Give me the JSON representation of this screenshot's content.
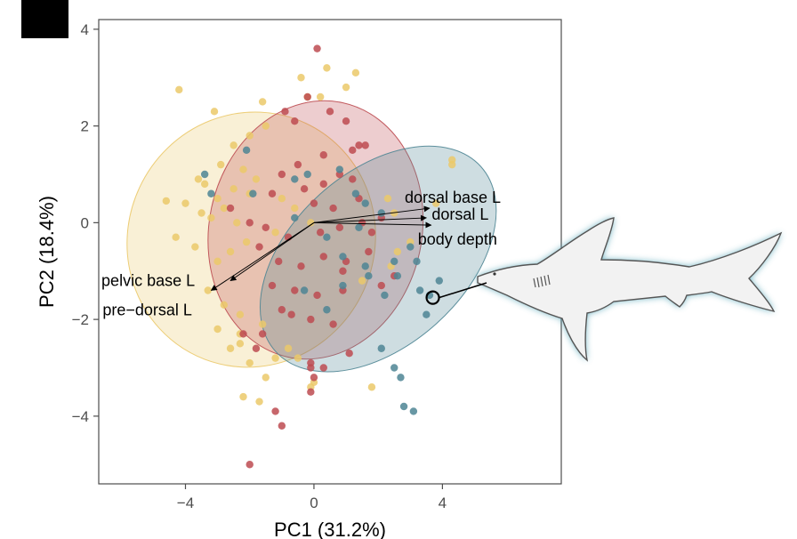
{
  "corner_box": {
    "color": "#000000"
  },
  "chart_data": {
    "type": "scatter",
    "title": "",
    "xlabel": "PC1 (31.2%)",
    "ylabel": "PC2 (18.4%)",
    "xlim": [
      -6.7,
      7.7
    ],
    "ylim": [
      -5.4,
      4.2
    ],
    "x_ticks": [
      -4,
      0,
      4
    ],
    "x_tick_labels": [
      "−4",
      "0",
      "4"
    ],
    "y_ticks": [
      4,
      2,
      0,
      -2,
      -4
    ],
    "y_tick_labels": [
      "4",
      "2",
      "0",
      "−2",
      "−4"
    ],
    "grid": false,
    "legend": "none",
    "series": [
      {
        "color": "#EBC96A",
        "points": [
          [
            -4.2,
            2.75
          ],
          [
            -3.1,
            2.3
          ],
          [
            -1.6,
            2.5
          ],
          [
            -0.4,
            3.0
          ],
          [
            0.4,
            3.2
          ],
          [
            1.3,
            3.1
          ],
          [
            -0.2,
            2.6
          ],
          [
            0.2,
            2.6
          ],
          [
            -1.5,
            2.0
          ],
          [
            -2.5,
            1.6
          ],
          [
            -2.9,
            1.2
          ],
          [
            -2.2,
            1.1
          ],
          [
            -3.4,
            0.8
          ],
          [
            -3.0,
            0.5
          ],
          [
            -2.5,
            0.7
          ],
          [
            -2.0,
            0.6
          ],
          [
            -1.8,
            0.9
          ],
          [
            -4.6,
            0.45
          ],
          [
            -4.0,
            0.4
          ],
          [
            -3.5,
            0.2
          ],
          [
            -3.2,
            0.1
          ],
          [
            -2.8,
            0.3
          ],
          [
            -2.4,
            0.0
          ],
          [
            -4.3,
            -0.3
          ],
          [
            -3.7,
            -0.5
          ],
          [
            -3.0,
            -0.8
          ],
          [
            -2.6,
            -0.6
          ],
          [
            -2.1,
            -0.4
          ],
          [
            -3.3,
            -1.4
          ],
          [
            -2.8,
            -1.7
          ],
          [
            -2.3,
            -1.9
          ],
          [
            -1.6,
            -2.1
          ],
          [
            -2.3,
            -2.3
          ],
          [
            -3.0,
            -2.2
          ],
          [
            -2.3,
            -2.5
          ],
          [
            -2.6,
            -2.6
          ],
          [
            -1.2,
            -2.8
          ],
          [
            -0.5,
            -2.8
          ],
          [
            -0.8,
            -2.6
          ],
          [
            -1.5,
            -3.2
          ],
          [
            -2.2,
            -3.6
          ],
          [
            -1.7,
            -3.7
          ],
          [
            -0.1,
            -3.4
          ],
          [
            0.0,
            -3.3
          ],
          [
            1.8,
            -3.4
          ],
          [
            -2.0,
            -2.9
          ],
          [
            -1.0,
            0.5
          ],
          [
            -0.6,
            0.3
          ],
          [
            2.3,
            0.5
          ],
          [
            2.5,
            0.2
          ],
          [
            2.6,
            -0.6
          ],
          [
            2.4,
            -0.9
          ],
          [
            1.5,
            -1.2
          ],
          [
            3.0,
            -0.4
          ],
          [
            4.3,
            1.3
          ],
          [
            4.3,
            1.2
          ],
          [
            3.8,
            0.4
          ],
          [
            -2.0,
            1.8
          ],
          [
            -0.1,
            0.0
          ],
          [
            1.0,
            2.8
          ],
          [
            -3.6,
            0.9
          ],
          [
            -1.2,
            -0.2
          ]
        ]
      },
      {
        "color": "#BD4B51",
        "points": [
          [
            0.1,
            3.6
          ],
          [
            -0.2,
            2.6
          ],
          [
            0.5,
            2.3
          ],
          [
            -0.6,
            2.1
          ],
          [
            1.0,
            2.1
          ],
          [
            1.6,
            1.6
          ],
          [
            1.4,
            1.6
          ],
          [
            1.2,
            1.5
          ],
          [
            0.3,
            1.4
          ],
          [
            -0.5,
            1.2
          ],
          [
            -1.0,
            1.0
          ],
          [
            0.8,
            1.0
          ],
          [
            1.2,
            0.9
          ],
          [
            0.3,
            0.8
          ],
          [
            -0.3,
            0.7
          ],
          [
            -1.3,
            0.6
          ],
          [
            0.0,
            0.4
          ],
          [
            0.6,
            0.3
          ],
          [
            1.4,
            0.5
          ],
          [
            -2.6,
            0.3
          ],
          [
            -2.0,
            0.0
          ],
          [
            -1.5,
            -0.1
          ],
          [
            -0.8,
            -0.3
          ],
          [
            0.2,
            -0.2
          ],
          [
            0.8,
            -0.1
          ],
          [
            1.5,
            0.0
          ],
          [
            2.1,
            0.1
          ],
          [
            -1.7,
            -0.5
          ],
          [
            -1.1,
            -0.8
          ],
          [
            -0.4,
            -0.9
          ],
          [
            0.3,
            -0.7
          ],
          [
            1.0,
            -0.8
          ],
          [
            1.7,
            -0.6
          ],
          [
            -1.3,
            -1.3
          ],
          [
            -0.6,
            -1.4
          ],
          [
            0.1,
            -1.5
          ],
          [
            0.9,
            -1.4
          ],
          [
            2.1,
            -1.3
          ],
          [
            -1.0,
            -1.8
          ],
          [
            -0.1,
            -2.0
          ],
          [
            0.6,
            -2.1
          ],
          [
            -1.6,
            -2.3
          ],
          [
            -2.2,
            -2.3
          ],
          [
            -0.7,
            -1.9
          ],
          [
            -1.8,
            -2.6
          ],
          [
            -0.1,
            -2.9
          ],
          [
            1.1,
            -2.7
          ],
          [
            -0.1,
            -3.0
          ],
          [
            -0.1,
            -3.5
          ],
          [
            -1.2,
            -3.9
          ],
          [
            -1.0,
            -4.2
          ],
          [
            -2.0,
            -5.0
          ],
          [
            0.0,
            -3.2
          ],
          [
            0.3,
            -3.0
          ],
          [
            2.5,
            -1.1
          ],
          [
            -0.9,
            2.3
          ],
          [
            0.9,
            -1.0
          ],
          [
            1.8,
            -0.2
          ]
        ]
      },
      {
        "color": "#4E8594",
        "points": [
          [
            -2.1,
            1.5
          ],
          [
            -3.4,
            1.0
          ],
          [
            -3.2,
            0.6
          ],
          [
            -1.9,
            0.6
          ],
          [
            -0.2,
            1.0
          ],
          [
            0.8,
            1.1
          ],
          [
            1.3,
            0.6
          ],
          [
            1.6,
            0.4
          ],
          [
            2.1,
            0.2
          ],
          [
            -0.6,
            0.1
          ],
          [
            0.4,
            -0.3
          ],
          [
            0.9,
            -0.7
          ],
          [
            1.6,
            -0.9
          ],
          [
            2.5,
            -0.8
          ],
          [
            2.6,
            -1.1
          ],
          [
            3.0,
            -0.5
          ],
          [
            3.2,
            -0.8
          ],
          [
            3.3,
            -1.4
          ],
          [
            3.6,
            -1.5
          ],
          [
            3.9,
            -1.2
          ],
          [
            3.5,
            -1.9
          ],
          [
            1.7,
            -1.1
          ],
          [
            2.2,
            -1.5
          ],
          [
            0.9,
            -1.3
          ],
          [
            0.4,
            -1.8
          ],
          [
            -0.3,
            -1.4
          ],
          [
            2.1,
            -2.6
          ],
          [
            2.5,
            -3.0
          ],
          [
            2.7,
            -3.2
          ],
          [
            2.8,
            -3.8
          ],
          [
            3.1,
            -3.9
          ],
          [
            1.4,
            -0.1
          ],
          [
            -0.6,
            0.9
          ]
        ]
      }
    ],
    "ellipses": [
      {
        "color": "#EBC96A",
        "cx": -1.95,
        "cy": -0.35,
        "rx": 4.0,
        "ry": 2.55,
        "angle_deg": -65
      },
      {
        "color": "#BD4B51",
        "cx": 0.05,
        "cy": -0.15,
        "rx": 4.05,
        "ry": 2.2,
        "angle_deg": -78
      },
      {
        "color": "#4E8594",
        "cx": 2.0,
        "cy": -0.75,
        "rx": 4.3,
        "ry": 1.8,
        "angle_deg": -42
      }
    ],
    "vectors": [
      {
        "label": "dorsal base L",
        "from": [
          0,
          0
        ],
        "to": [
          3.6,
          0.3
        ]
      },
      {
        "label": "dorsal L",
        "from": [
          0,
          0
        ],
        "to": [
          3.5,
          0.1
        ]
      },
      {
        "label": "body depth",
        "from": [
          0,
          0
        ],
        "to": [
          3.65,
          -0.05
        ]
      },
      {
        "label": "pelvic base L",
        "from": [
          0,
          0
        ],
        "to": [
          -2.6,
          -1.2
        ]
      },
      {
        "label": "pre−dorsal L",
        "from": [
          0,
          0
        ],
        "to": [
          -3.2,
          -1.4
        ]
      }
    ],
    "highlight_point": [
      3.7,
      -1.55
    ]
  }
}
